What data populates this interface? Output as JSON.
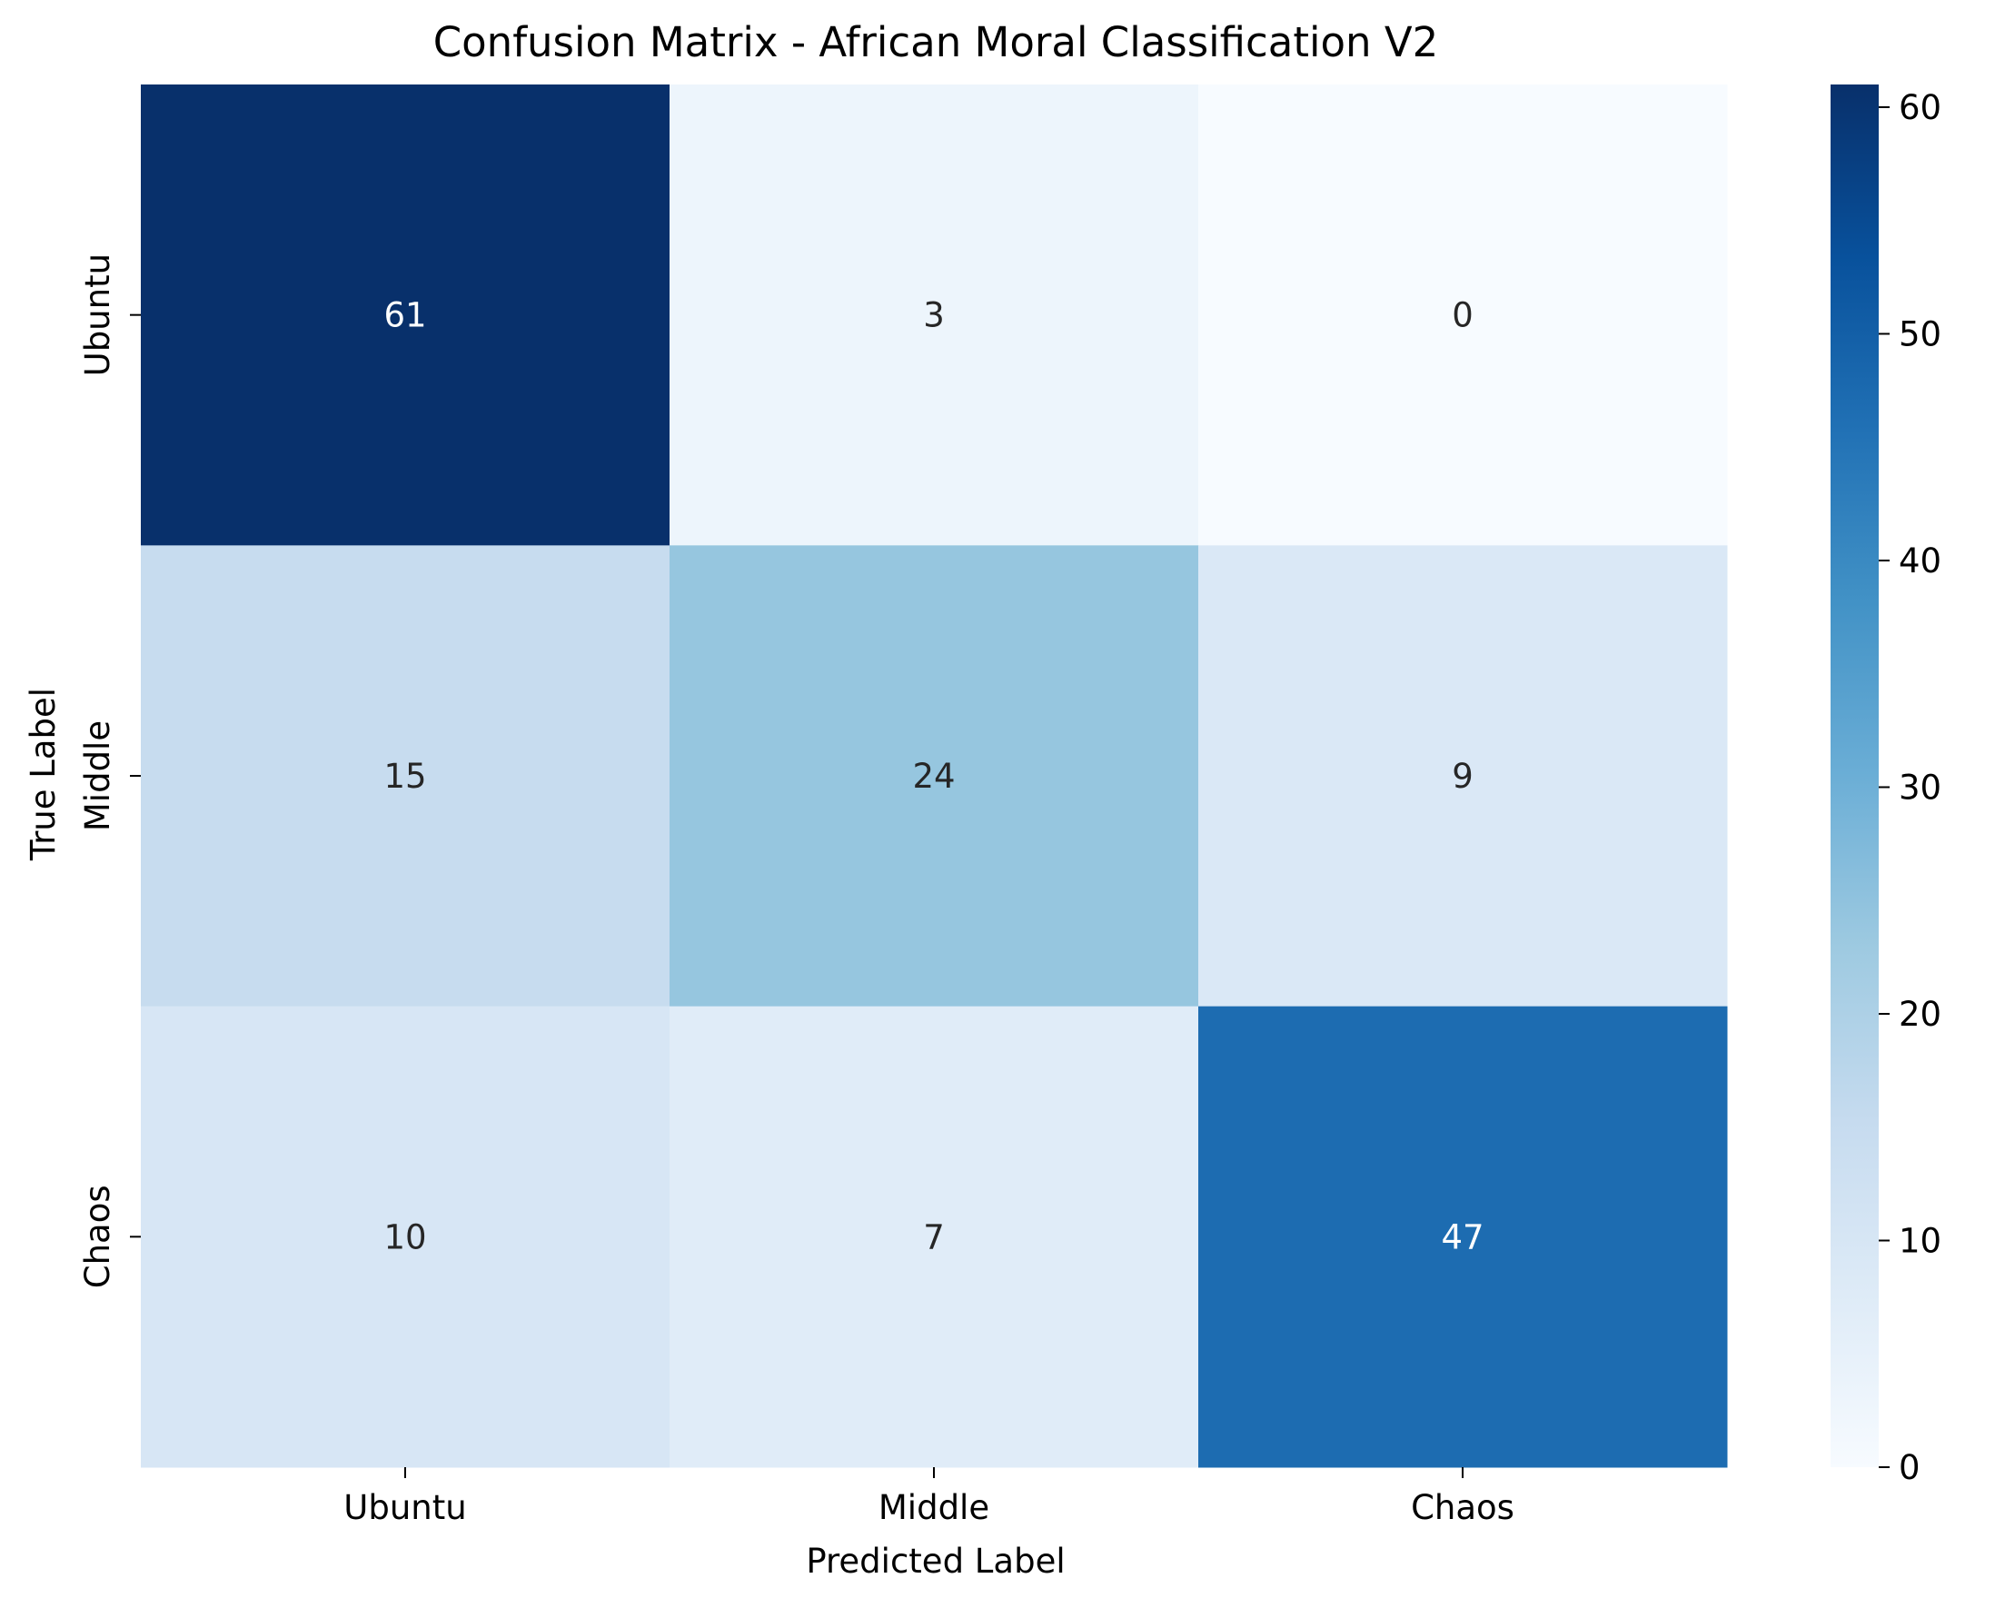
{
  "chart_data": {
    "type": "heatmap",
    "title": "Confusion Matrix - African Moral Classification V2",
    "xlabel": "Predicted Label",
    "ylabel": "True Label",
    "x_categories": [
      "Ubuntu",
      "Middle",
      "Chaos"
    ],
    "y_categories": [
      "Ubuntu",
      "Middle",
      "Chaos"
    ],
    "values": [
      [
        61,
        3,
        0
      ],
      [
        15,
        24,
        9
      ],
      [
        10,
        7,
        47
      ]
    ],
    "colormap": "Blues",
    "colorbar": {
      "range": [
        0,
        61
      ],
      "ticks": [
        0,
        10,
        20,
        30,
        40,
        50,
        60
      ]
    },
    "annotations_shown": true,
    "grid": false
  }
}
